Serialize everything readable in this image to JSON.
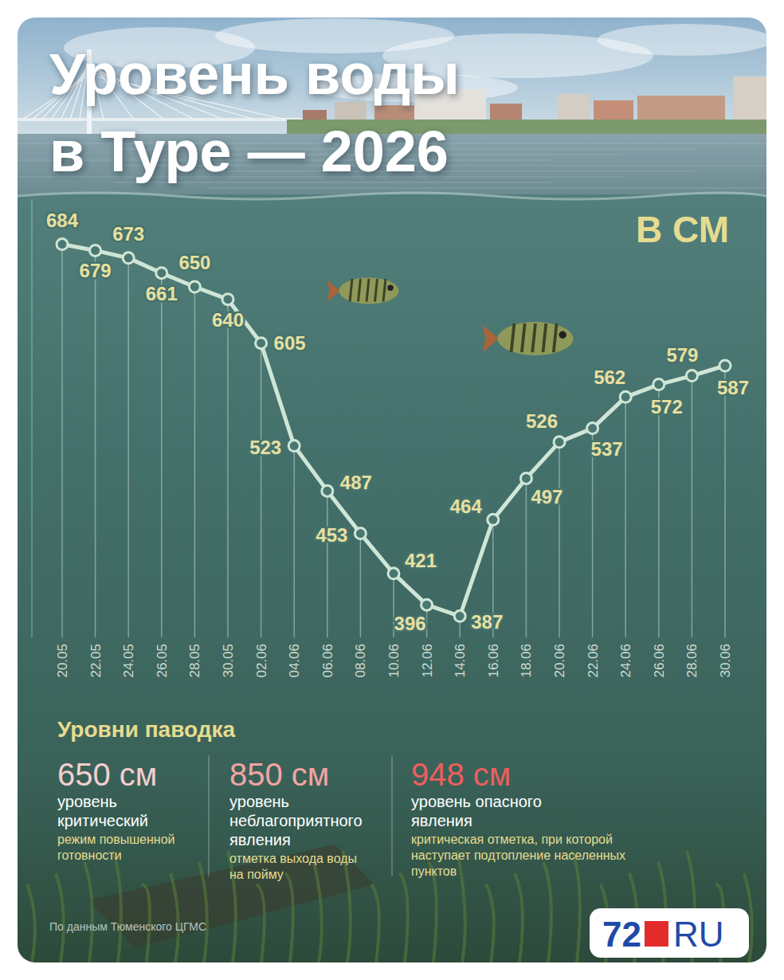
{
  "chart_data": {
    "type": "line",
    "title": "Уровень воды в Туре — 2026",
    "ylabel": "В СМ",
    "categories": [
      "20.05",
      "22.05",
      "24.05",
      "26.05",
      "28.05",
      "30.05",
      "02.06",
      "04.06",
      "06.06",
      "08.06",
      "10.06",
      "12.06",
      "14.06",
      "16.06",
      "18.06",
      "20.06",
      "22.06",
      "24.06",
      "26.06",
      "28.06",
      "30.06"
    ],
    "values": [
      684,
      679,
      673,
      661,
      650,
      640,
      605,
      523,
      487,
      453,
      421,
      396,
      387,
      464,
      497,
      526,
      537,
      562,
      572,
      579,
      587
    ],
    "color": "#cfe6d6",
    "ylim": [
      370,
      720
    ],
    "yticks": [],
    "tick_labels": "x",
    "grid": true,
    "data_labels": true,
    "marker": "circle",
    "line_style": "solid"
  },
  "flood_levels": {
    "title": "Уровни паводка",
    "items": [
      {
        "level": "650 см",
        "name": "уровень критический",
        "note": "режим повышенной готовности"
      },
      {
        "level": "850 см",
        "name": "уровень неблагоприятного явления",
        "note": "отметка выхода воды на пойму"
      },
      {
        "level": "948 см",
        "name": "уровень опасного явления",
        "note": "критическая отметка, при которой наступает подтопление населенных пунктов"
      }
    ]
  },
  "source": "По данным Тюменского ЦГМС",
  "logo": {
    "left": "72",
    "right": "RU"
  }
}
